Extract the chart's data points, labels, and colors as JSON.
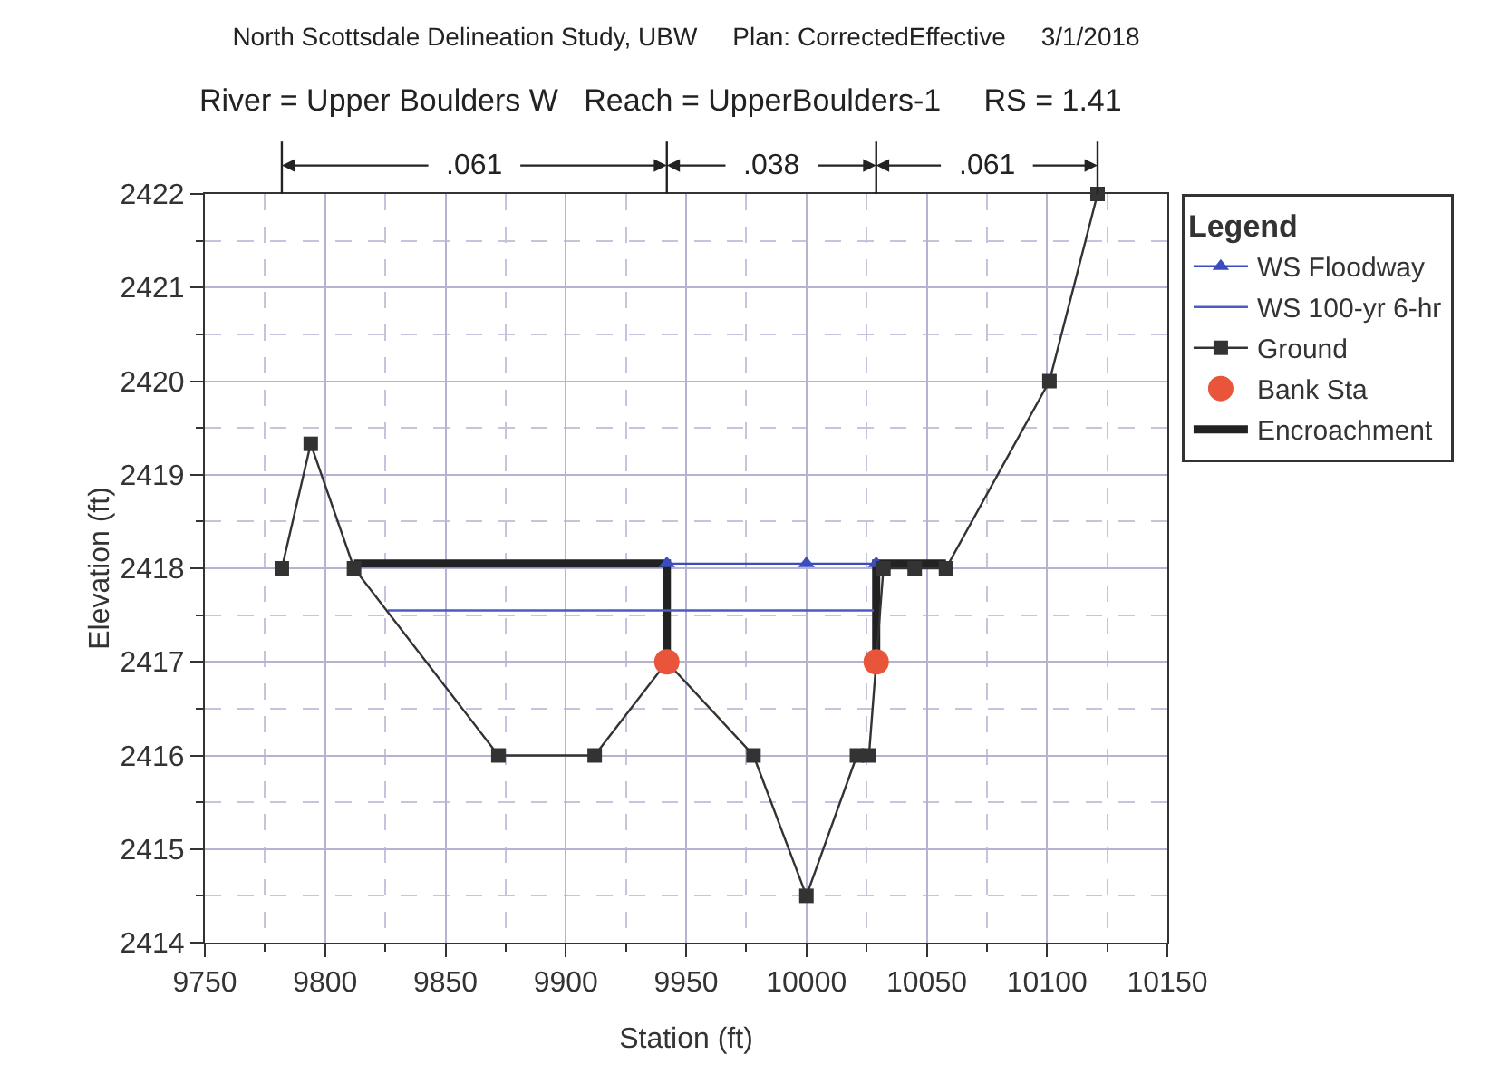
{
  "chart_data": {
    "type": "line",
    "title": "North Scottsdale Delineation Study, UBW     Plan: CorrectedEffective     3/1/2018",
    "subtitle": "River = Upper Boulders W   Reach = UpperBoulders-1     RS = 1.41",
    "xlabel": "Station (ft)",
    "ylabel": "Elevation (ft)",
    "legend_title": "Legend",
    "annotations": [
      ".061",
      ".038",
      ".061"
    ],
    "series": [
      {
        "name": "WS Floodway",
        "type": "line",
        "color": "#3b4cc0",
        "marker": "triangle",
        "x": [
          9942,
          10000,
          10029
        ],
        "values": [
          2418.05,
          2418.05,
          2418.05
        ]
      },
      {
        "name": "WS 100-yr 6-hr",
        "type": "line",
        "color": "#4a5bc8",
        "marker": "none",
        "x": [
          9826,
          10028
        ],
        "values": [
          2417.55,
          2417.55
        ]
      },
      {
        "name": "Ground",
        "type": "line",
        "color": "#333333",
        "marker": "square",
        "x": [
          9782,
          9794,
          9812,
          9872,
          9912,
          9942,
          9978,
          10000,
          10021,
          10026,
          10029,
          10032,
          10045,
          10058,
          10101,
          10121
        ],
        "values": [
          2418,
          2419.33,
          2418,
          2416,
          2416,
          2417,
          2416,
          2414.5,
          2416,
          2416,
          2417,
          2418,
          2418,
          2418,
          2420,
          2422
        ]
      },
      {
        "name": "Bank Sta",
        "type": "scatter",
        "color": "#e8553a",
        "marker": "circle",
        "x": [
          9942,
          10029
        ],
        "values": [
          2417,
          2417
        ]
      },
      {
        "name": "Encroachment",
        "type": "line",
        "color": "#222222",
        "marker": "none",
        "x": [
          9812,
          9942,
          9942,
          null,
          10029,
          10029,
          10058
        ],
        "values": [
          2418.05,
          2418.05,
          2417,
          null,
          2417,
          2418.05,
          2418.05
        ]
      }
    ],
    "xlim": [
      9750,
      10150
    ],
    "xticks": [
      9750,
      {
        "value": 9775,
        "label": null
      },
      9800,
      {
        "value": 9825,
        "label": null
      },
      9850,
      {
        "value": 9875,
        "label": null
      },
      9900,
      {
        "value": 9925,
        "label": null
      },
      9950,
      {
        "value": 9975,
        "label": null
      },
      10000,
      {
        "value": 10025,
        "label": null
      },
      10050,
      {
        "value": 10075,
        "label": null
      },
      10100,
      {
        "value": 10125,
        "label": null
      },
      10150
    ],
    "ylim": [
      2414,
      2422
    ],
    "yticks": [
      2414,
      {
        "value": 2414.5,
        "label": null
      },
      2415,
      {
        "value": 2415.5,
        "label": null
      },
      2416,
      {
        "value": 2416.5,
        "label": null
      },
      2417,
      {
        "value": 2417.5,
        "label": null
      },
      2418,
      {
        "value": 2418.5,
        "label": null
      },
      2419,
      {
        "value": 2419.5,
        "label": null
      },
      2420,
      {
        "value": 2420.5,
        "label": null
      },
      2421,
      {
        "value": 2421.5,
        "label": null
      },
      2422
    ],
    "grid": true,
    "legend": "right"
  }
}
